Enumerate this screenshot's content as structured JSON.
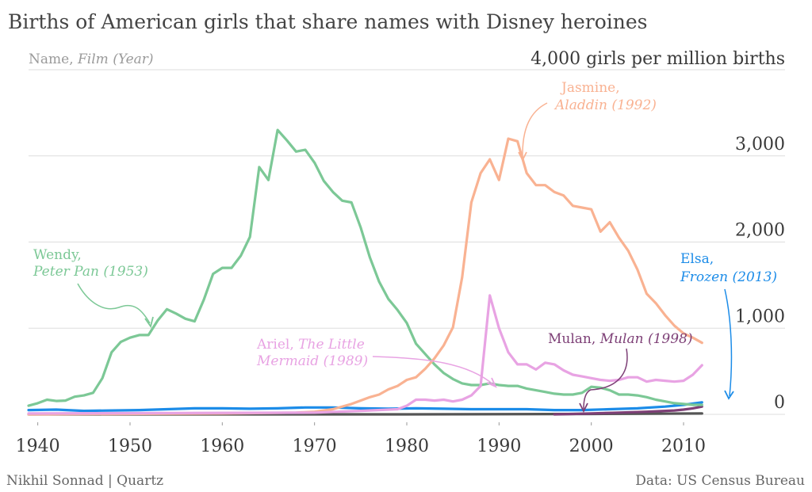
{
  "chart_data": {
    "type": "line",
    "title": "Births of American girls that share names with Disney heroines",
    "legend_label": {
      "name": "Name, ",
      "film": "Film (Year)"
    },
    "unit_label": "4,000 girls per million births",
    "y_ticks": [
      "0",
      "1,000",
      "2,000",
      "3,000"
    ],
    "y_tick_values": [
      0,
      1000,
      2000,
      3000,
      4000
    ],
    "x_ticks": [
      "1940",
      "1950",
      "1960",
      "1970",
      "1980",
      "1990",
      "2000",
      "2010"
    ],
    "x_tick_values": [
      1940,
      1950,
      1960,
      1970,
      1980,
      1990,
      2000,
      2010
    ],
    "xlim": [
      1939,
      2021
    ],
    "ylim": [
      0,
      4000
    ],
    "grid": true,
    "series": [
      {
        "name": "Wendy",
        "film": "Peter Pan (1953)",
        "color": "#7cc896",
        "x": [
          1939,
          1940,
          1941,
          1942,
          1943,
          1944,
          1945,
          1946,
          1947,
          1948,
          1949,
          1950,
          1951,
          1952,
          1953,
          1954,
          1955,
          1956,
          1957,
          1958,
          1959,
          1960,
          1961,
          1962,
          1963,
          1964,
          1965,
          1966,
          1967,
          1968,
          1969,
          1970,
          1971,
          1972,
          1973,
          1974,
          1975,
          1976,
          1977,
          1978,
          1979,
          1980,
          1981,
          1982,
          1983,
          1984,
          1985,
          1986,
          1987,
          1988,
          1989,
          1990,
          1991,
          1992,
          1993,
          1994,
          1995,
          1996,
          1997,
          1998,
          1999,
          2000,
          2001,
          2002,
          2003,
          2004,
          2005,
          2006,
          2007,
          2008,
          2009,
          2010,
          2011,
          2012
        ],
        "y": [
          100,
          130,
          170,
          155,
          160,
          205,
          220,
          250,
          420,
          720,
          840,
          890,
          920,
          920,
          1090,
          1220,
          1170,
          1110,
          1080,
          1330,
          1630,
          1700,
          1700,
          1840,
          2060,
          2870,
          2720,
          3300,
          3180,
          3050,
          3070,
          2920,
          2710,
          2580,
          2480,
          2460,
          2170,
          1820,
          1540,
          1340,
          1210,
          1060,
          820,
          700,
          580,
          480,
          410,
          360,
          340,
          340,
          360,
          340,
          330,
          330,
          300,
          280,
          260,
          240,
          230,
          230,
          250,
          320,
          310,
          280,
          230,
          230,
          220,
          200,
          170,
          150,
          130,
          120,
          110,
          110
        ]
      },
      {
        "name": "Jasmine",
        "film": "Aladdin (1992)",
        "color": "#f9b292",
        "x": [
          1939,
          1960,
          1968,
          1970,
          1972,
          1974,
          1976,
          1977,
          1978,
          1979,
          1980,
          1981,
          1982,
          1983,
          1984,
          1985,
          1986,
          1987,
          1988,
          1989,
          1990,
          1991,
          1992,
          1993,
          1994,
          1995,
          1996,
          1997,
          1998,
          1999,
          2000,
          2001,
          2002,
          2003,
          2004,
          2005,
          2006,
          2007,
          2008,
          2009,
          2010,
          2011,
          2012
        ],
        "y": [
          0,
          10,
          20,
          30,
          60,
          120,
          200,
          230,
          290,
          330,
          400,
          430,
          530,
          650,
          800,
          1010,
          1590,
          2460,
          2800,
          2960,
          2720,
          3200,
          3170,
          2800,
          2660,
          2660,
          2580,
          2540,
          2420,
          2400,
          2380,
          2120,
          2230,
          2050,
          1900,
          1680,
          1400,
          1290,
          1150,
          1030,
          940,
          890,
          830
        ]
      },
      {
        "name": "Ariel",
        "film": "The Little Mermaid (1989)",
        "color": "#e8a3e3",
        "x": [
          1939,
          1970,
          1975,
          1979,
          1980,
          1981,
          1982,
          1983,
          1984,
          1985,
          1986,
          1987,
          1988,
          1989,
          1990,
          1991,
          1992,
          1993,
          1994,
          1995,
          1996,
          1997,
          1998,
          1999,
          2000,
          2001,
          2002,
          2003,
          2004,
          2005,
          2006,
          2007,
          2008,
          2009,
          2010,
          2011,
          2012
        ],
        "y": [
          10,
          20,
          40,
          60,
          100,
          170,
          170,
          160,
          170,
          150,
          170,
          220,
          330,
          1380,
          1000,
          720,
          580,
          580,
          520,
          600,
          580,
          510,
          460,
          440,
          420,
          400,
          390,
          400,
          430,
          430,
          380,
          400,
          390,
          380,
          390,
          460,
          570
        ]
      },
      {
        "name": "Elsa",
        "film": "Frozen (2013)",
        "color": "#1c8ce8",
        "x": [
          1939,
          1942,
          1945,
          1948,
          1951,
          1954,
          1957,
          1960,
          1963,
          1966,
          1969,
          1972,
          1975,
          1978,
          1981,
          1984,
          1987,
          1990,
          1993,
          1996,
          1999,
          2002,
          2005,
          2008,
          2010,
          2012
        ],
        "y": [
          50,
          55,
          40,
          45,
          50,
          60,
          70,
          70,
          65,
          70,
          80,
          80,
          70,
          65,
          70,
          65,
          60,
          60,
          60,
          50,
          50,
          60,
          70,
          90,
          110,
          140
        ]
      },
      {
        "name": "Mulan",
        "film": "Mulan (1998)",
        "color": "#7d3f76",
        "x": [
          1996,
          1998,
          2000,
          2003,
          2006,
          2009,
          2010,
          2011,
          2012
        ],
        "y": [
          0,
          5,
          10,
          20,
          30,
          45,
          55,
          70,
          90
        ]
      },
      {
        "name": "",
        "film": "",
        "color": "#555555",
        "x": [
          1939,
          1960,
          1980,
          2000,
          2012
        ],
        "y": [
          0,
          0,
          0,
          5,
          10
        ]
      }
    ],
    "annotations": [
      {
        "series": "Wendy",
        "line1": "Wendy,",
        "film": "Peter Pan (1953)"
      },
      {
        "series": "Jasmine",
        "line1": "Jasmine,",
        "film": "Aladdin (1992)"
      },
      {
        "series": "Ariel",
        "line1a": "Ariel, ",
        "film_a": "The Little",
        "film_b": "Mermaid (1989)"
      },
      {
        "series": "Mulan",
        "line1": "Mulan, ",
        "film": "Mulan (1998)"
      },
      {
        "series": "Elsa",
        "line1": "Elsa,",
        "film": "Frozen (2013)"
      }
    ]
  },
  "footer": {
    "credit": "Nikhil Sonnad | Quartz",
    "source": "Data: US Census Bureau"
  }
}
